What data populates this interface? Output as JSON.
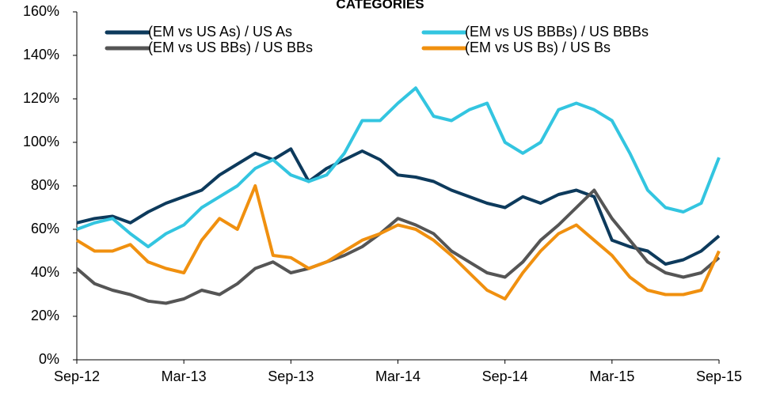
{
  "chart_data": {
    "type": "line",
    "title": "CATEGORIES",
    "categories": [
      "Sep-12",
      null,
      null,
      null,
      null,
      null,
      "Mar-13",
      null,
      null,
      null,
      null,
      null,
      "Sep-13",
      null,
      null,
      null,
      null,
      null,
      "Mar-14",
      null,
      null,
      null,
      null,
      null,
      "Sep-14",
      null,
      null,
      null,
      null,
      null,
      "Mar-15",
      null,
      null,
      null,
      null,
      null,
      "Sep-15"
    ],
    "series": [
      {
        "name": "(EM vs US As) / US As",
        "color": "#0d3a5c",
        "values": [
          63,
          65,
          66,
          63,
          68,
          72,
          75,
          78,
          85,
          90,
          95,
          92,
          97,
          82,
          88,
          92,
          96,
          92,
          85,
          84,
          82,
          78,
          75,
          72,
          70,
          75,
          72,
          76,
          78,
          75,
          55,
          52,
          50,
          44,
          46,
          50,
          57
        ]
      },
      {
        "name": "(EM vs US BBBs) / US BBBs",
        "color": "#33c5e0",
        "values": [
          60,
          63,
          65,
          58,
          52,
          58,
          62,
          70,
          75,
          80,
          88,
          92,
          85,
          82,
          85,
          95,
          110,
          110,
          118,
          125,
          112,
          110,
          115,
          118,
          100,
          95,
          100,
          115,
          118,
          115,
          110,
          95,
          78,
          70,
          68,
          72,
          93
        ]
      },
      {
        "name": "(EM vs US BBs) / US BBs",
        "color": "#555555",
        "values": [
          42,
          35,
          32,
          30,
          27,
          26,
          28,
          32,
          30,
          35,
          42,
          45,
          40,
          42,
          45,
          48,
          52,
          58,
          65,
          62,
          58,
          50,
          45,
          40,
          38,
          45,
          55,
          62,
          70,
          78,
          65,
          55,
          45,
          40,
          38,
          40,
          47
        ]
      },
      {
        "name": "(EM vs US Bs) / US Bs",
        "color": "#f0900f",
        "values": [
          55,
          50,
          50,
          53,
          45,
          42,
          40,
          55,
          65,
          60,
          80,
          48,
          47,
          42,
          45,
          50,
          55,
          58,
          62,
          60,
          55,
          48,
          40,
          32,
          28,
          40,
          50,
          58,
          62,
          55,
          48,
          38,
          32,
          30,
          30,
          32,
          50
        ]
      }
    ],
    "ylim": [
      0,
      160
    ],
    "yticks": [
      {
        "value": 0,
        "label": "0%"
      },
      {
        "value": 20,
        "label": "20%"
      },
      {
        "value": 40,
        "label": "40%"
      },
      {
        "value": 60,
        "label": "60%"
      },
      {
        "value": 80,
        "label": "80%"
      },
      {
        "value": 100,
        "label": "100%"
      },
      {
        "value": 120,
        "label": "120%"
      },
      {
        "value": 140,
        "label": "140%"
      },
      {
        "value": 160,
        "label": "160%"
      }
    ],
    "legend": "top",
    "grid": false
  }
}
